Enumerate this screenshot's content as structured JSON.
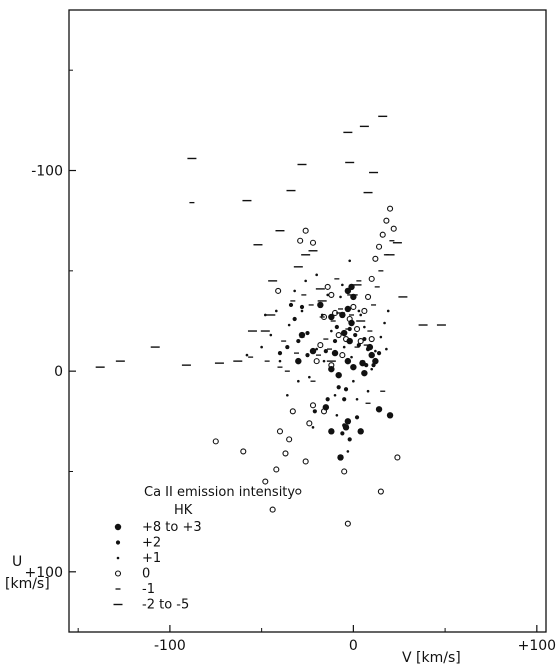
{
  "chart_data": {
    "type": "scatter",
    "title": "",
    "xlabel": "V [km/s]",
    "ylabel": "U\n[km/s]",
    "xlim": [
      -155,
      105
    ],
    "ylim": [
      -180,
      130
    ],
    "y_inverted": true,
    "x_ticks": [
      -100,
      0,
      100
    ],
    "x_tick_labels": [
      "-100",
      "0",
      "+100"
    ],
    "y_ticks": [
      -100,
      0,
      100
    ],
    "y_tick_labels": [
      "-100",
      "0",
      "+100"
    ],
    "grid": false,
    "legend_position": "bottom-left",
    "legend_title": "Ca II emission intensity",
    "legend_subtitle": "HK",
    "series": [
      {
        "name": "+8 to +3",
        "marker": "filled-large",
        "points": [
          [
            -28,
            -18
          ],
          [
            -30,
            -5
          ],
          [
            -22,
            -10
          ],
          [
            -12,
            -1
          ],
          [
            -8,
            2
          ],
          [
            -10,
            -9
          ],
          [
            -3,
            -5
          ],
          [
            0,
            -2
          ],
          [
            -2,
            -15
          ],
          [
            -5,
            -19
          ],
          [
            5,
            -4
          ],
          [
            6,
            1
          ],
          [
            12,
            -5
          ],
          [
            -1,
            -24
          ],
          [
            -6,
            -28
          ],
          [
            -15,
            18
          ],
          [
            14,
            19
          ],
          [
            20,
            22
          ],
          [
            -12,
            30
          ],
          [
            -7,
            43
          ],
          [
            -4,
            28
          ],
          [
            -3,
            25
          ],
          [
            4,
            30
          ],
          [
            10,
            -8
          ],
          [
            9,
            -12
          ],
          [
            -3,
            -31
          ],
          [
            -12,
            -27
          ],
          [
            -18,
            -33
          ],
          [
            0,
            -37
          ],
          [
            -3,
            -40
          ],
          [
            -1,
            -42
          ]
        ]
      },
      {
        "name": "+2",
        "marker": "filled-medium",
        "points": [
          [
            -40,
            -9
          ],
          [
            -36,
            -12
          ],
          [
            -32,
            -26
          ],
          [
            -30,
            -15
          ],
          [
            -25,
            -8
          ],
          [
            -21,
            20
          ],
          [
            -15,
            -10
          ],
          [
            -14,
            14
          ],
          [
            -10,
            -15
          ],
          [
            -8,
            8
          ],
          [
            -5,
            14
          ],
          [
            -4,
            9
          ],
          [
            -2,
            -21
          ],
          [
            1,
            -18
          ],
          [
            3,
            -13
          ],
          [
            7,
            -3
          ],
          [
            8,
            -11
          ],
          [
            11,
            -3
          ],
          [
            14,
            -9
          ],
          [
            -5,
            27
          ],
          [
            -6,
            31
          ],
          [
            -2,
            34
          ],
          [
            2,
            23
          ],
          [
            -25,
            -19
          ],
          [
            -28,
            -32
          ],
          [
            -9,
            -22
          ],
          [
            6,
            -16
          ],
          [
            -34,
            -33
          ]
        ]
      },
      {
        "name": "+1",
        "marker": "filled-small",
        "points": [
          [
            -58,
            -8
          ],
          [
            -50,
            -12
          ],
          [
            -45,
            -18
          ],
          [
            -48,
            -28
          ],
          [
            -40,
            -5
          ],
          [
            -35,
            -23
          ],
          [
            -30,
            5
          ],
          [
            -28,
            -30
          ],
          [
            -24,
            3
          ],
          [
            -20,
            -11
          ],
          [
            -17,
            -28
          ],
          [
            -12,
            -20
          ],
          [
            -10,
            12
          ],
          [
            -9,
            22
          ],
          [
            -7,
            -37
          ],
          [
            -5,
            -12
          ],
          [
            -3,
            40
          ],
          [
            -1,
            -7
          ],
          [
            0,
            5
          ],
          [
            2,
            14
          ],
          [
            4,
            -28
          ],
          [
            6,
            -22
          ],
          [
            8,
            10
          ],
          [
            10,
            -1
          ],
          [
            12,
            -10
          ],
          [
            15,
            -17
          ],
          [
            17,
            -24
          ],
          [
            19,
            -30
          ],
          [
            -26,
            -45
          ],
          [
            -20,
            -48
          ],
          [
            -14,
            -38
          ],
          [
            -6,
            -43
          ],
          [
            3,
            -30
          ],
          [
            -2,
            -55
          ],
          [
            -22,
            28
          ],
          [
            -36,
            12
          ],
          [
            -42,
            -30
          ],
          [
            -32,
            -40
          ],
          [
            -16,
            -5
          ],
          [
            18,
            -11
          ]
        ]
      },
      {
        "name": "0",
        "marker": "open-circle",
        "points": [
          [
            -75,
            35
          ],
          [
            -60,
            40
          ],
          [
            -48,
            55
          ],
          [
            -44,
            69
          ],
          [
            -42,
            49
          ],
          [
            -40,
            30
          ],
          [
            -35,
            34
          ],
          [
            -33,
            20
          ],
          [
            -30,
            60
          ],
          [
            -26,
            45
          ],
          [
            -24,
            26
          ],
          [
            -22,
            17
          ],
          [
            -20,
            -5
          ],
          [
            -18,
            -13
          ],
          [
            -16,
            -27
          ],
          [
            -14,
            -42
          ],
          [
            -12,
            -38
          ],
          [
            -10,
            -29
          ],
          [
            -8,
            -18
          ],
          [
            -6,
            -8
          ],
          [
            -4,
            -16
          ],
          [
            -2,
            -26
          ],
          [
            0,
            -32
          ],
          [
            2,
            -21
          ],
          [
            4,
            -15
          ],
          [
            6,
            -30
          ],
          [
            8,
            -37
          ],
          [
            10,
            -46
          ],
          [
            12,
            -56
          ],
          [
            14,
            -62
          ],
          [
            16,
            -68
          ],
          [
            18,
            -75
          ],
          [
            20,
            -81
          ],
          [
            -22,
            -64
          ],
          [
            -26,
            -70
          ],
          [
            -29,
            -65
          ],
          [
            -37,
            41
          ],
          [
            -41,
            -40
          ],
          [
            -12,
            -3
          ],
          [
            22,
            -71
          ],
          [
            -3,
            76
          ],
          [
            24,
            43
          ],
          [
            -16,
            20
          ],
          [
            -5,
            50
          ],
          [
            15,
            60
          ],
          [
            10,
            -16
          ]
        ]
      },
      {
        "name": "-1",
        "marker": "dash-small",
        "points": [
          [
            -88,
            -84
          ],
          [
            -56,
            -7
          ],
          [
            -47,
            -5
          ],
          [
            -38,
            -15
          ],
          [
            -33,
            -35
          ],
          [
            -28,
            -17
          ],
          [
            -23,
            -33
          ],
          [
            -19,
            -8
          ],
          [
            -17,
            -27
          ],
          [
            -13,
            -11
          ],
          [
            -11,
            -25
          ],
          [
            -9,
            -46
          ],
          [
            -7,
            -31
          ],
          [
            -3,
            -21
          ],
          [
            -1,
            -28
          ],
          [
            1,
            -38
          ],
          [
            3,
            -45
          ],
          [
            5,
            -5
          ],
          [
            7,
            -13
          ],
          [
            9,
            -20
          ],
          [
            11,
            -33
          ],
          [
            13,
            -42
          ],
          [
            15,
            -50
          ],
          [
            18,
            -58
          ],
          [
            21,
            -65
          ],
          [
            -36,
            0
          ],
          [
            -31,
            -9
          ],
          [
            -27,
            -38
          ],
          [
            -22,
            5
          ],
          [
            -2,
            -38
          ],
          [
            8,
            16
          ],
          [
            16,
            10
          ],
          [
            2,
            -12
          ],
          [
            -40,
            -2
          ],
          [
            -15,
            -16
          ]
        ]
      },
      {
        "name": "-2 to -5",
        "marker": "dash-large",
        "points": [
          [
            -138,
            -2
          ],
          [
            -127,
            -5
          ],
          [
            -108,
            -12
          ],
          [
            -91,
            -3
          ],
          [
            -88,
            -106
          ],
          [
            -73,
            -4
          ],
          [
            -63,
            -5
          ],
          [
            -58,
            -85
          ],
          [
            -52,
            -63
          ],
          [
            -48,
            -20
          ],
          [
            -44,
            -45
          ],
          [
            -40,
            -70
          ],
          [
            -34,
            -90
          ],
          [
            -28,
            -103
          ],
          [
            -22,
            -60
          ],
          [
            -17,
            -35
          ],
          [
            -12,
            -5
          ],
          [
            -7,
            -29
          ],
          [
            -3,
            -119
          ],
          [
            -2,
            -104
          ],
          [
            2,
            -43
          ],
          [
            6,
            -122
          ],
          [
            8,
            -89
          ],
          [
            11,
            -99
          ],
          [
            16,
            -127
          ],
          [
            20,
            -58
          ],
          [
            24,
            -64
          ],
          [
            27,
            -37
          ],
          [
            38,
            -23
          ],
          [
            48,
            -23
          ],
          [
            -26,
            -58
          ],
          [
            -30,
            -52
          ],
          [
            -55,
            -20
          ],
          [
            -45,
            -28
          ],
          [
            -18,
            -41
          ],
          [
            4,
            -25
          ]
        ]
      }
    ]
  }
}
